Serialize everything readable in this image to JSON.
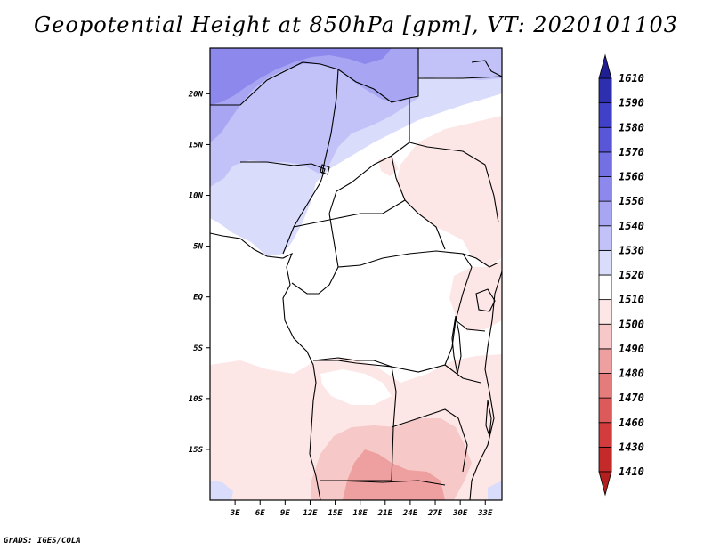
{
  "title": "Geopotential Height at 850hPa [gpm], VT: 2020101103",
  "credit": "GrADS: IGES/COLA",
  "map": {
    "lon_labels": [
      "3E",
      "6E",
      "9E",
      "12E",
      "15E",
      "18E",
      "21E",
      "24E",
      "27E",
      "30E",
      "33E"
    ],
    "lat_labels": [
      "20N",
      "15N",
      "10N",
      "5N",
      "EQ",
      "5S",
      "10S",
      "15S"
    ]
  },
  "colorbar": {
    "levels": [
      "1410",
      "1430",
      "1460",
      "1470",
      "1480",
      "1490",
      "1500",
      "1510",
      "1520",
      "1530",
      "1540",
      "1550",
      "1560",
      "1570",
      "1580",
      "1590",
      "1610"
    ],
    "colors": [
      "#b31e1e",
      "#c42a2a",
      "#d33c3c",
      "#dc5a5a",
      "#e57c7c",
      "#ee9f9f",
      "#f6c8c8",
      "#fde6e6",
      "#ffffff",
      "#dadcfb",
      "#c2c2f8",
      "#a8a6f2",
      "#8c88ec",
      "#7270e3",
      "#5a56d8",
      "#4140c8",
      "#2e2fae",
      "#1f1e93"
    ]
  }
}
